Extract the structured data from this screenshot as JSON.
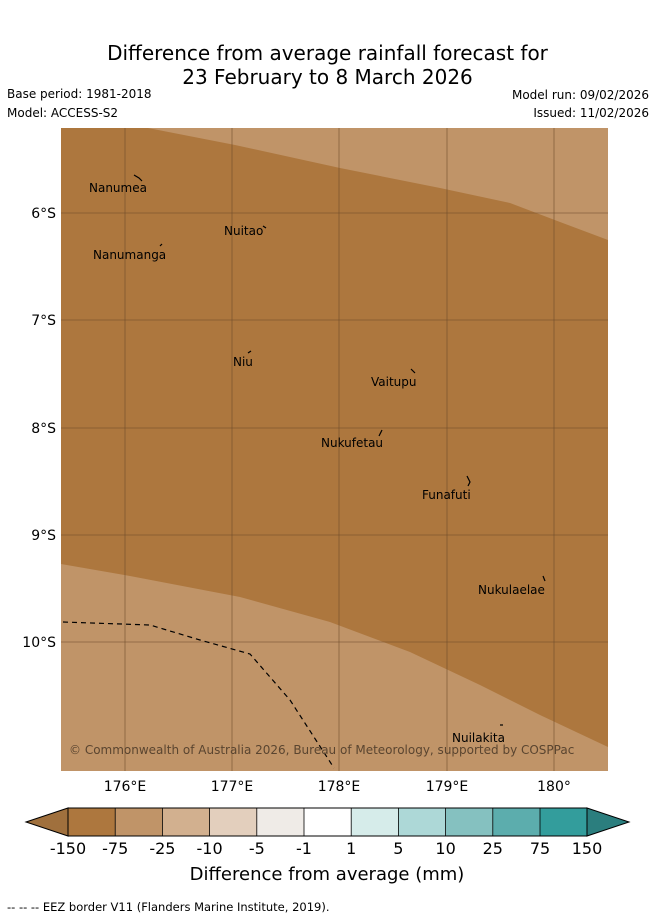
{
  "title_line1": "Difference from average rainfall forecast for",
  "title_line2": "23 February to 8 March 2026",
  "meta": {
    "base_period": "Base period: 1981-2018",
    "model": "Model: ACCESS-S2",
    "model_run": "Model run: 09/02/2026",
    "issued": "Issued: 11/02/2026"
  },
  "map": {
    "colors": {
      "dark_brown": "#ad773e",
      "light_brown": "#c09468",
      "grid": "#6b4a2b",
      "eez": "#000000"
    },
    "lat_labels": [
      "6°S",
      "7°S",
      "8°S",
      "9°S",
      "10°S"
    ],
    "lon_labels": [
      "176°E",
      "177°E",
      "178°E",
      "179°E",
      "180°"
    ],
    "places": [
      {
        "key": "nanumea",
        "label": "Nanumea"
      },
      {
        "key": "nuitao",
        "label": "Nuitao"
      },
      {
        "key": "nanumanga",
        "label": "Nanumanga"
      },
      {
        "key": "niu",
        "label": "Niu"
      },
      {
        "key": "vaitupu",
        "label": "Vaitupu"
      },
      {
        "key": "nukufetau",
        "label": "Nukufetau"
      },
      {
        "key": "funafuti",
        "label": "Funafuti"
      },
      {
        "key": "nukulaelae",
        "label": "Nukulaelae"
      },
      {
        "key": "nuilakita",
        "label": "Nuilakita"
      }
    ],
    "copyright": "© Commonwealth of Australia 2026, Bureau of Meteorology, supported by COSPPac"
  },
  "colorbar": {
    "title": "Difference from average (mm)",
    "labels": [
      "-150",
      "-75",
      "-25",
      "-10",
      "-5",
      "-1",
      "1",
      "5",
      "10",
      "25",
      "75",
      "150"
    ],
    "colors": [
      "#a0703d",
      "#ad773e",
      "#c09468",
      "#d2b08f",
      "#e3cfbd",
      "#efebe7",
      "#ffffff",
      "#d6ecea",
      "#add8d7",
      "#85c1c0",
      "#5cadad",
      "#339d9c",
      "#2b7e7e"
    ]
  },
  "footer": "--  --  -- EEZ border V11 (Flanders Marine Institute, 2019)."
}
